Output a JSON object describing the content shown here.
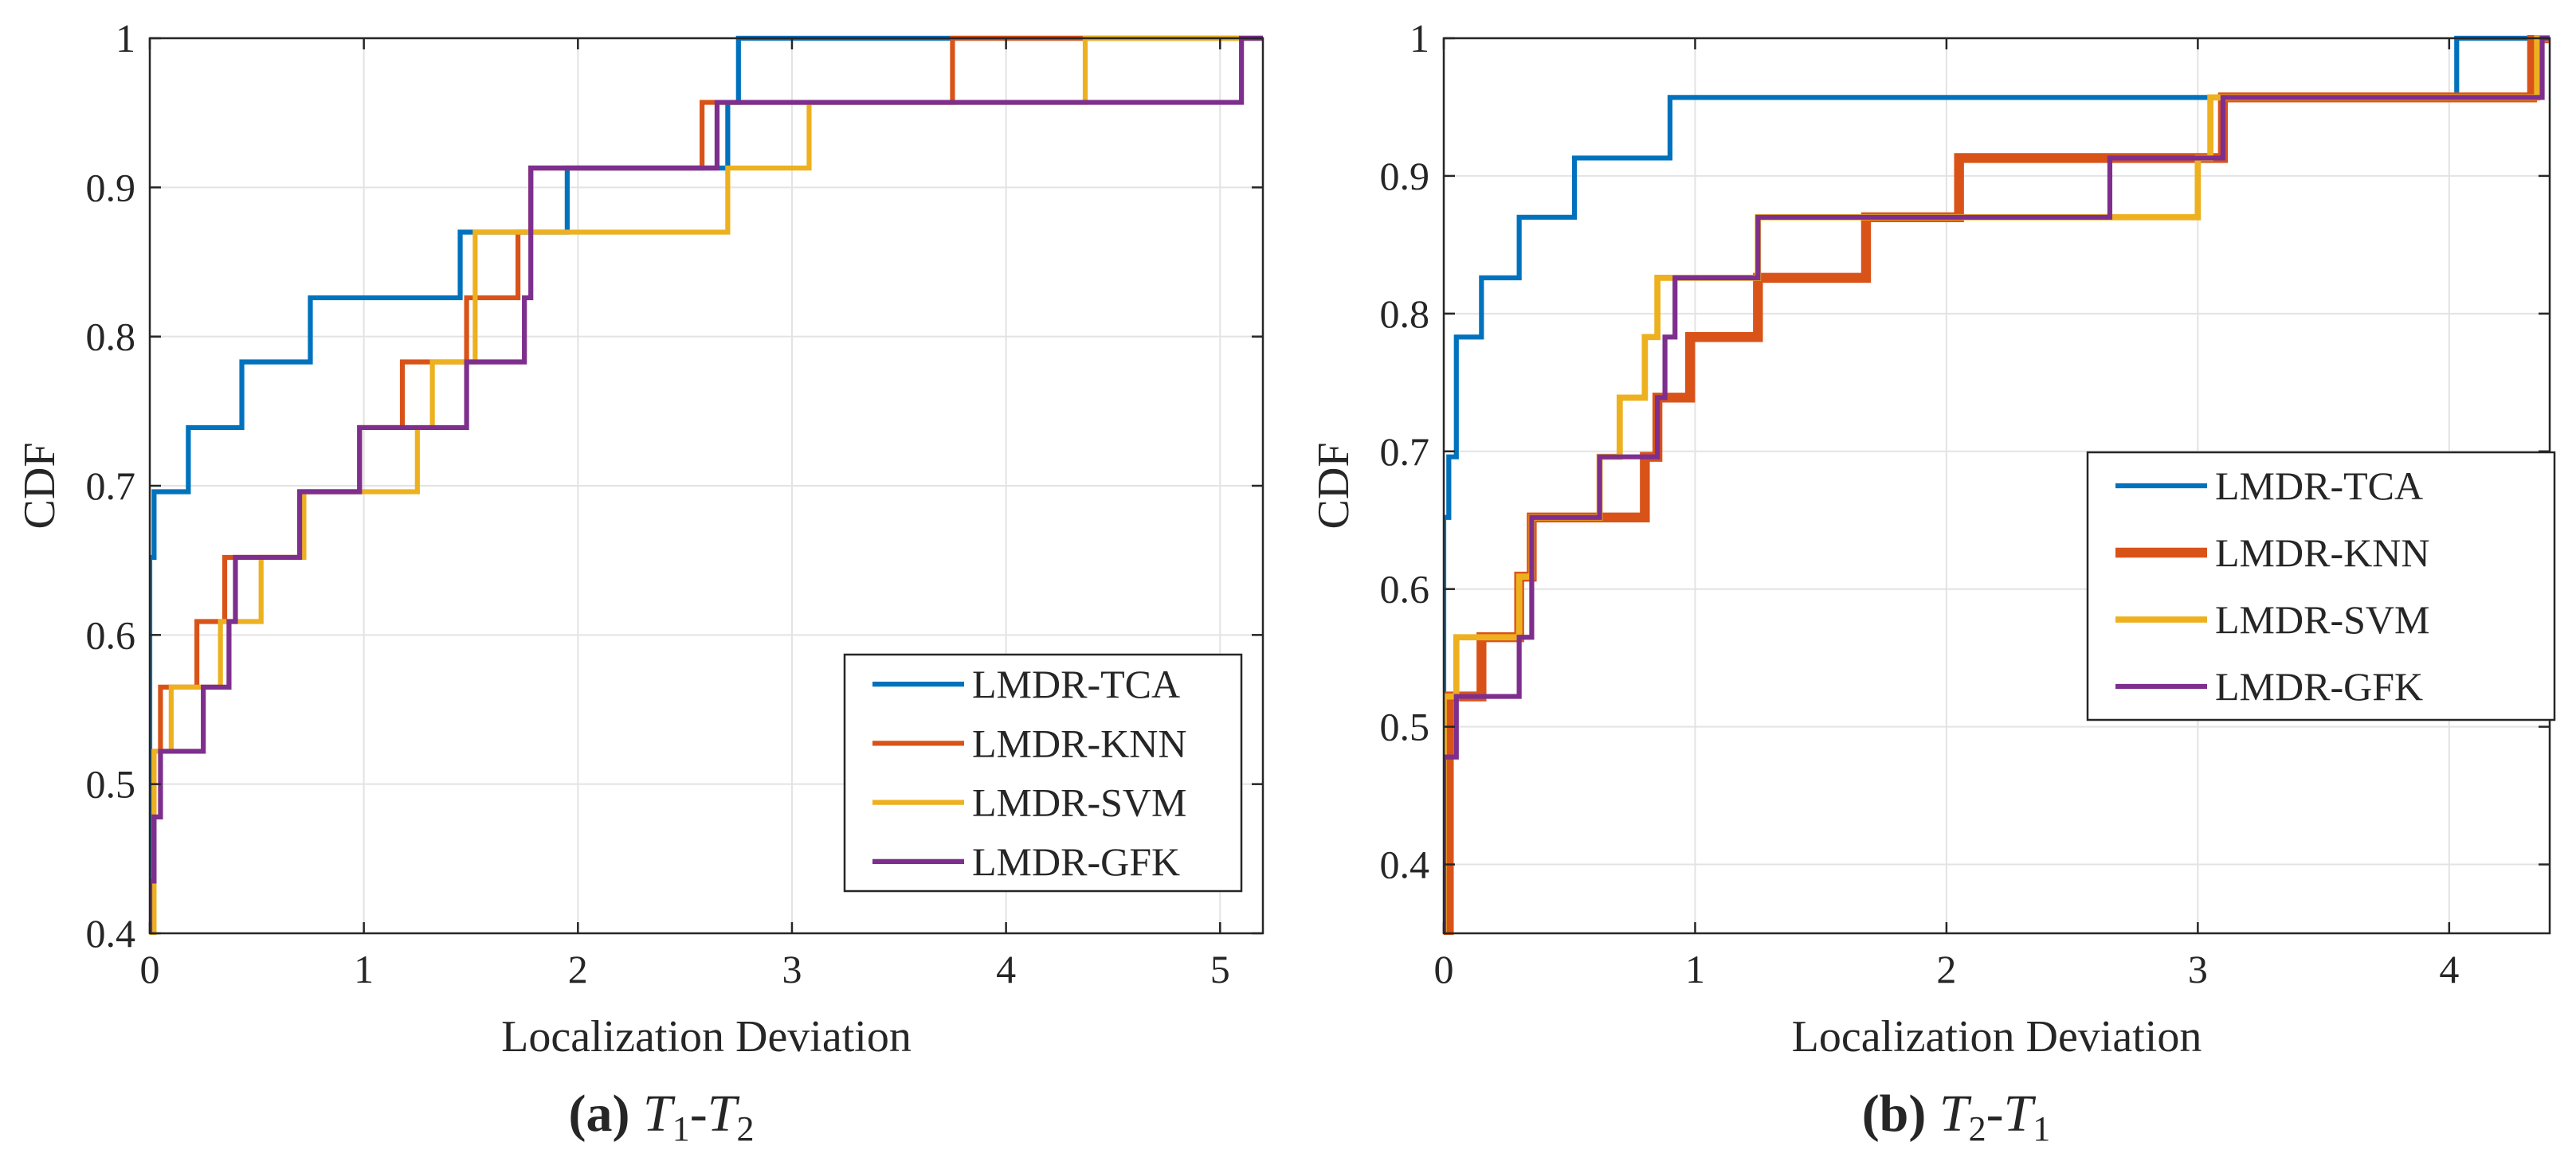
{
  "chart_data": [
    {
      "type": "line",
      "step": true,
      "caption": {
        "label": "(a)",
        "sub1": "1",
        "sub2": "2"
      },
      "caption_text": "T1-T2",
      "xlabel": "Localization Deviation",
      "ylabel": "CDF",
      "xlim": [
        0,
        5.2
      ],
      "ylim": [
        0.4,
        1.0
      ],
      "xticks": [
        "0",
        "1",
        "2",
        "3",
        "4",
        "5"
      ],
      "xtick_values": [
        0,
        1,
        2,
        3,
        4,
        5
      ],
      "yticks": [
        "0.4",
        "0.5",
        "0.6",
        "0.7",
        "0.8",
        "0.9",
        "1"
      ],
      "ytick_values": [
        0.4,
        0.5,
        0.6,
        0.7,
        0.8,
        0.9,
        1.0
      ],
      "grid": true,
      "legend_position": "bottom-right",
      "series": [
        {
          "name": "LMDR-TCA",
          "color": "#0072BD",
          "width": 2,
          "x": [
            0,
            0,
            0.02,
            0.18,
            0.43,
            0.75,
            1.45,
            1.95,
            2.7,
            2.75
          ],
          "y": [
            0.4,
            0.652,
            0.696,
            0.739,
            0.783,
            0.826,
            0.87,
            0.913,
            0.957,
            1.0
          ]
        },
        {
          "name": "LMDR-KNN",
          "color": "#D95319",
          "width": 2,
          "x": [
            0,
            0.02,
            0.05,
            0.22,
            0.35,
            0.7,
            0.98,
            1.18,
            1.48,
            1.72,
            1.78,
            2.58,
            3.75
          ],
          "y": [
            0.4,
            0.522,
            0.565,
            0.609,
            0.652,
            0.696,
            0.739,
            0.783,
            0.826,
            0.87,
            0.913,
            0.957,
            1.0
          ]
        },
        {
          "name": "LMDR-SVM",
          "color": "#EDB120",
          "width": 2,
          "x": [
            0,
            0.02,
            0.1,
            0.33,
            0.52,
            0.72,
            1.25,
            1.32,
            1.52,
            2.7,
            3.08,
            4.37
          ],
          "y": [
            0.4,
            0.522,
            0.565,
            0.609,
            0.652,
            0.696,
            0.739,
            0.783,
            0.87,
            0.913,
            0.957,
            1.0
          ]
        },
        {
          "name": "LMDR-GFK",
          "color": "#7E2F8E",
          "width": 2,
          "x": [
            0,
            0,
            0.02,
            0.05,
            0.25,
            0.37,
            0.4,
            0.7,
            0.98,
            1.48,
            1.75,
            1.78,
            2.65,
            5.1
          ],
          "y": [
            0.4,
            0.435,
            0.478,
            0.522,
            0.565,
            0.609,
            0.652,
            0.696,
            0.739,
            0.783,
            0.826,
            0.913,
            0.957,
            1.0
          ]
        }
      ]
    },
    {
      "type": "line",
      "step": true,
      "caption": {
        "label": "(b)",
        "sub1": "2",
        "sub2": "1"
      },
      "caption_text": "T2-T1",
      "xlabel": "Localization Deviation",
      "ylabel": "CDF",
      "xlim": [
        0,
        4.4
      ],
      "ylim": [
        0.35,
        1.0
      ],
      "xticks": [
        "0",
        "1",
        "2",
        "3",
        "4"
      ],
      "xtick_values": [
        0,
        1,
        2,
        3,
        4
      ],
      "yticks": [
        "0.4",
        "0.5",
        "0.6",
        "0.7",
        "0.8",
        "0.9",
        "1"
      ],
      "ytick_values": [
        0.4,
        0.5,
        0.6,
        0.7,
        0.8,
        0.9,
        1.0
      ],
      "grid": true,
      "legend_position": "center-right",
      "series": [
        {
          "name": "LMDR-TCA",
          "color": "#0072BD",
          "width": 2,
          "x": [
            0,
            0,
            0.02,
            0.05,
            0.15,
            0.3,
            0.52,
            0.9,
            4.03
          ],
          "y": [
            0.35,
            0.652,
            0.696,
            0.783,
            0.826,
            0.87,
            0.913,
            0.957,
            1.0
          ]
        },
        {
          "name": "LMDR-KNN",
          "color": "#D95319",
          "width": 4,
          "x": [
            0,
            0.02,
            0.08,
            0.15,
            0.3,
            0.35,
            0.62,
            0.8,
            0.85,
            0.98,
            1.25,
            1.68,
            2.05,
            3.1,
            4.33
          ],
          "y": [
            0.35,
            0.522,
            0.522,
            0.565,
            0.609,
            0.652,
            0.652,
            0.696,
            0.739,
            0.783,
            0.826,
            0.87,
            0.913,
            0.957,
            1.0
          ]
        },
        {
          "name": "LMDR-SVM",
          "color": "#EDB120",
          "width": 2.5,
          "x": [
            0,
            0,
            0.05,
            0.3,
            0.35,
            0.62,
            0.7,
            0.8,
            0.85,
            0.88,
            1.25,
            3.0,
            3.05,
            4.35
          ],
          "y": [
            0.35,
            0.522,
            0.565,
            0.609,
            0.652,
            0.696,
            0.739,
            0.783,
            0.826,
            0.826,
            0.87,
            0.913,
            0.957,
            1.0
          ]
        },
        {
          "name": "LMDR-GFK",
          "color": "#7E2F8E",
          "width": 2,
          "x": [
            0,
            0,
            0.02,
            0.05,
            0.3,
            0.35,
            0.62,
            0.85,
            0.88,
            0.92,
            1.25,
            2.65,
            3.1,
            4.37
          ],
          "y": [
            0.35,
            0.478,
            0.478,
            0.522,
            0.565,
            0.652,
            0.696,
            0.739,
            0.783,
            0.826,
            0.87,
            0.913,
            0.957,
            1.0
          ]
        }
      ]
    }
  ]
}
